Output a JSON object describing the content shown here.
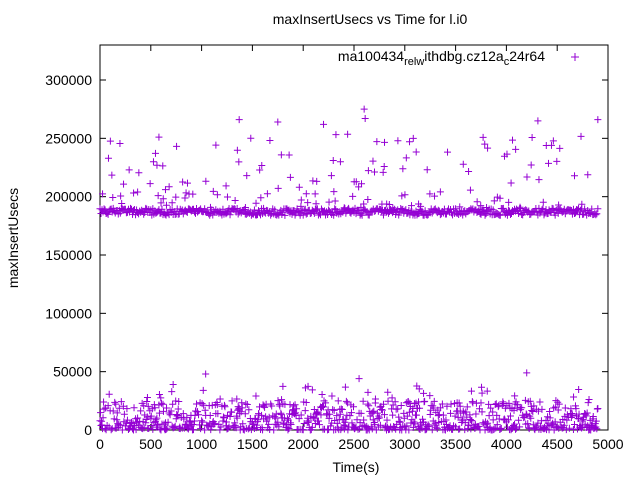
{
  "chart_data": {
    "type": "scatter",
    "title": "maxInsertUsecs vs Time for l.i0",
    "xlabel": "Time(s)",
    "ylabel": "maxInsertUsecs",
    "xlim": [
      0,
      5000
    ],
    "ylim": [
      0,
      330000
    ],
    "x_ticks": [
      0,
      500,
      1000,
      1500,
      2000,
      2500,
      3000,
      3500,
      4000,
      4500,
      5000
    ],
    "y_ticks": [
      0,
      50000,
      100000,
      150000,
      200000,
      250000,
      300000
    ],
    "grid": false,
    "legend_position": "top-right",
    "marker": "+",
    "series": [
      {
        "name": "ma100434_rel_withdbg.cz12a_c24r64",
        "legend_parts": [
          {
            "text": "ma100434",
            "shift": "base"
          },
          {
            "text": "rel",
            "shift": "sub"
          },
          {
            "text": "w",
            "shift": "sub"
          },
          {
            "text": "ithdbg.cz12a",
            "shift": "base"
          },
          {
            "text": "c",
            "shift": "sub"
          },
          {
            "text": "24r64",
            "shift": "base"
          }
        ],
        "color": "#9400d3",
        "x_range": [
          0,
          4900
        ],
        "sample_interval": 10,
        "bands": [
          {
            "label": "high-baseline",
            "center": 187000,
            "spread": 3000
          },
          {
            "label": "high-outliers",
            "min": 190000,
            "max": 275000
          },
          {
            "label": "low-baseline",
            "min": 0,
            "max": 25000
          },
          {
            "label": "low-outliers",
            "min": 25000,
            "max": 50000
          }
        ],
        "notable_points": [
          {
            "x": 2600,
            "y": 275000
          },
          {
            "x": 1370,
            "y": 266000
          },
          {
            "x": 4900,
            "y": 266000
          },
          {
            "x": 4310,
            "y": 265000
          },
          {
            "x": 1750,
            "y": 264000
          },
          {
            "x": 2610,
            "y": 267000
          },
          {
            "x": 2200,
            "y": 262000
          },
          {
            "x": 580,
            "y": 251000
          },
          {
            "x": 1040,
            "y": 48000
          },
          {
            "x": 4200,
            "y": 49000
          },
          {
            "x": 2550,
            "y": 44000
          },
          {
            "x": 720,
            "y": 39000
          }
        ]
      }
    ]
  }
}
